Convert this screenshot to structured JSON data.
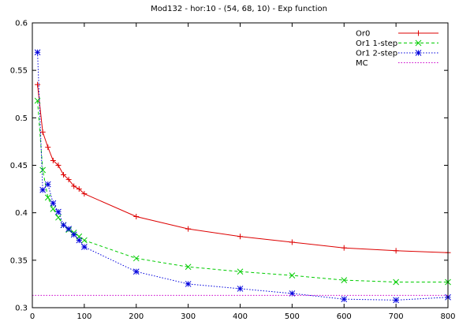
{
  "chart_data": {
    "type": "line",
    "title": "Mod132 - hor:10 - (54,  68,  10) - Exp function",
    "xlabel": "",
    "ylabel": "",
    "xlim": [
      0,
      800
    ],
    "ylim": [
      0.3,
      0.6
    ],
    "x_ticks": [
      0,
      100,
      200,
      300,
      400,
      500,
      600,
      700,
      800
    ],
    "y_ticks": [
      0.3,
      0.35,
      0.4,
      0.45,
      0.5,
      0.55,
      0.6
    ],
    "x_tick_labels": [
      "0",
      "100",
      "200",
      "300",
      "400",
      "500",
      "600",
      "700",
      "800"
    ],
    "y_tick_labels": [
      "0.3",
      "0.35",
      "0.4",
      "0.45",
      "0.5",
      "0.55",
      "0.6"
    ],
    "grid": false,
    "legend_position": "top-right",
    "series": [
      {
        "name": "Or0",
        "color": "#dd0000",
        "marker": "plus",
        "dash": "solid",
        "x": [
          10,
          20,
          30,
          40,
          50,
          60,
          70,
          80,
          90,
          100,
          200,
          300,
          400,
          500,
          600,
          700,
          800
        ],
        "y": [
          0.535,
          0.485,
          0.469,
          0.455,
          0.45,
          0.44,
          0.435,
          0.428,
          0.425,
          0.42,
          0.396,
          0.383,
          0.375,
          0.369,
          0.363,
          0.36,
          0.358
        ]
      },
      {
        "name": "Or1 1-step",
        "color": "#00cc00",
        "marker": "cross",
        "dash": "dashed",
        "x": [
          10,
          20,
          30,
          40,
          50,
          60,
          70,
          80,
          90,
          100,
          200,
          300,
          400,
          500,
          600,
          700,
          800
        ],
        "y": [
          0.518,
          0.445,
          0.416,
          0.404,
          0.395,
          0.387,
          0.382,
          0.379,
          0.375,
          0.371,
          0.352,
          0.343,
          0.338,
          0.334,
          0.329,
          0.327,
          0.327
        ]
      },
      {
        "name": "Or1 2-step",
        "color": "#0000dd",
        "marker": "star",
        "dash": "dotted",
        "x": [
          10,
          20,
          30,
          40,
          50,
          60,
          70,
          80,
          90,
          100,
          200,
          300,
          400,
          500,
          600,
          700,
          800
        ],
        "y": [
          0.569,
          0.424,
          0.43,
          0.41,
          0.401,
          0.387,
          0.383,
          0.377,
          0.371,
          0.364,
          0.338,
          0.325,
          0.32,
          0.315,
          0.309,
          0.308,
          0.311
        ]
      },
      {
        "name": "MC",
        "color": "#cc00cc",
        "marker": "none",
        "dash": "dotted",
        "x": [
          0,
          800
        ],
        "y": [
          0.313,
          0.313
        ]
      }
    ]
  }
}
